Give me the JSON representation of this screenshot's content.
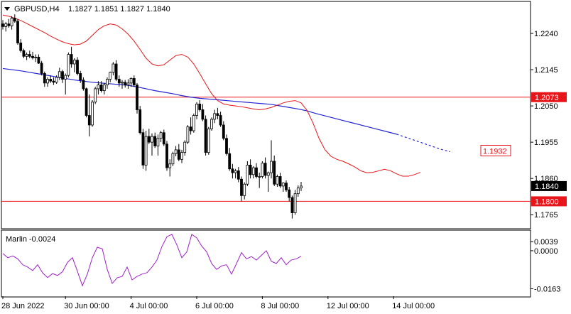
{
  "header": {
    "symbol": "GBPUSD,H4",
    "ohlc": "1.1827 1.1851 1.1827 1.1840"
  },
  "indicator": {
    "title": "Marlin -0.0024"
  },
  "colors": {
    "candle": "#000000",
    "red_band": "#e8161b",
    "ma_blue": "#2424d2",
    "marlin": "#a020c8",
    "hline": "#e8161b",
    "price_box": "#000000",
    "red_box": "#e8161b"
  },
  "chart_data": [
    {
      "type": "candlestick",
      "name": "GBPUSD,H4",
      "xlabels": [
        "28 Jun 2022",
        "30 Jun 00:00",
        "4 Jul 00:00",
        "6 Jul 00:00",
        "8 Jul 00:00",
        "12 Jul 00:00",
        "14 Jul 00:00"
      ],
      "xlabel_index": [
        0,
        21,
        43,
        65,
        87,
        109,
        131
      ],
      "yticks": [
        1.224,
        1.2145,
        1.205,
        1.1955,
        1.186,
        1.1765
      ],
      "ylim": [
        1.173,
        1.2322
      ],
      "horizontal_lines": [
        {
          "value": 1.2073,
          "label": "1.2073"
        },
        {
          "value": 1.18,
          "label": "1.1800"
        }
      ],
      "price_labels": [
        {
          "value": 1.184,
          "label": "1.1840",
          "style": "current"
        },
        {
          "value": 1.1932,
          "label": "1.1932",
          "style": "ma"
        }
      ],
      "ohlc": [
        [
          1.2265,
          1.2275,
          1.225,
          1.2258
        ],
        [
          1.2258,
          1.227,
          1.2245,
          1.2265
        ],
        [
          1.2265,
          1.2278,
          1.2255,
          1.226
        ],
        [
          1.226,
          1.2285,
          1.225,
          1.228
        ],
        [
          1.228,
          1.229,
          1.2268,
          1.2272
        ],
        [
          1.2272,
          1.2278,
          1.221,
          1.2215
        ],
        [
          1.2215,
          1.2225,
          1.219,
          1.2195
        ],
        [
          1.2195,
          1.22,
          1.2175,
          1.218
        ],
        [
          1.218,
          1.219,
          1.217,
          1.2185
        ],
        [
          1.2185,
          1.2195,
          1.2175,
          1.218
        ],
        [
          1.218,
          1.2192,
          1.2172,
          1.2176
        ],
        [
          1.2176,
          1.2185,
          1.2165,
          1.2178
        ],
        [
          1.2178,
          1.2185,
          1.216,
          1.2162
        ],
        [
          1.2162,
          1.2168,
          1.213,
          1.2135
        ],
        [
          1.2135,
          1.214,
          1.21,
          1.211
        ],
        [
          1.211,
          1.2125,
          1.21,
          1.212
        ],
        [
          1.212,
          1.213,
          1.211,
          1.2115
        ],
        [
          1.2115,
          1.2125,
          1.2105,
          1.2112
        ],
        [
          1.2112,
          1.213,
          1.2108,
          1.2125
        ],
        [
          1.2125,
          1.215,
          1.2118,
          1.214
        ],
        [
          1.214,
          1.2145,
          1.211,
          1.212
        ],
        [
          1.212,
          1.2135,
          1.208,
          1.213
        ],
        [
          1.213,
          1.219,
          1.2125,
          1.2185
        ],
        [
          1.2185,
          1.2205,
          1.215,
          1.216
        ],
        [
          1.216,
          1.2175,
          1.2138,
          1.217
        ],
        [
          1.217,
          1.2178,
          1.213,
          1.2135
        ],
        [
          1.2135,
          1.2142,
          1.211,
          1.2118
        ],
        [
          1.2118,
          1.2125,
          1.209,
          1.2095
        ],
        [
          1.2095,
          1.2098,
          1.202,
          1.2025
        ],
        [
          1.2025,
          1.208,
          1.197,
          1.2
        ],
        [
          1.2,
          1.2065,
          1.1995,
          1.206
        ],
        [
          1.206,
          1.21,
          1.2055,
          1.2095
        ],
        [
          1.2095,
          1.2115,
          1.208,
          1.2105
        ],
        [
          1.2105,
          1.2115,
          1.2085,
          1.209
        ],
        [
          1.209,
          1.211,
          1.208,
          1.2105
        ],
        [
          1.2105,
          1.2125,
          1.2095,
          1.212
        ],
        [
          1.212,
          1.214,
          1.2112,
          1.2138
        ],
        [
          1.2138,
          1.2165,
          1.213,
          1.216
        ],
        [
          1.216,
          1.217,
          1.2115,
          1.212
        ],
        [
          1.212,
          1.213,
          1.21,
          1.211
        ],
        [
          1.211,
          1.2118,
          1.2095,
          1.2112
        ],
        [
          1.2112,
          1.2118,
          1.2098,
          1.2105
        ],
        [
          1.2105,
          1.212,
          1.2095,
          1.211
        ],
        [
          1.211,
          1.2125,
          1.21,
          1.2122
        ],
        [
          1.2122,
          1.213,
          1.21,
          1.2105
        ],
        [
          1.2105,
          1.211,
          1.203,
          1.204
        ],
        [
          1.204,
          1.205,
          1.1975,
          1.198
        ],
        [
          1.198,
          1.199,
          1.1885,
          1.1895
        ],
        [
          1.1895,
          1.1985,
          1.188,
          1.197
        ],
        [
          1.197,
          1.199,
          1.195,
          1.1955
        ],
        [
          1.1955,
          1.1978,
          1.192,
          1.197
        ],
        [
          1.197,
          1.198,
          1.194,
          1.1945
        ],
        [
          1.1945,
          1.1975,
          1.192,
          1.1965
        ],
        [
          1.1965,
          1.1985,
          1.1955,
          1.198
        ],
        [
          1.198,
          1.1988,
          1.1945,
          1.195
        ],
        [
          1.195,
          1.1958,
          1.188,
          1.1888
        ],
        [
          1.1888,
          1.191,
          1.1865,
          1.1898
        ],
        [
          1.1898,
          1.193,
          1.1892,
          1.1925
        ],
        [
          1.1925,
          1.1945,
          1.1918,
          1.1935
        ],
        [
          1.1935,
          1.195,
          1.1905,
          1.191
        ],
        [
          1.191,
          1.1935,
          1.19,
          1.1928
        ],
        [
          1.1928,
          1.196,
          1.192,
          1.1955
        ],
        [
          1.1955,
          1.2,
          1.195,
          1.1995
        ],
        [
          1.1995,
          1.202,
          1.1975,
          1.1985
        ],
        [
          1.1985,
          1.203,
          1.198,
          1.2025
        ],
        [
          1.2025,
          1.206,
          1.2015,
          1.2055
        ],
        [
          1.2055,
          1.2065,
          1.2035,
          1.204
        ],
        [
          1.204,
          1.2055,
          1.201,
          1.2015
        ],
        [
          1.2015,
          1.2025,
          1.192,
          1.1928
        ],
        [
          1.1928,
          1.1995,
          1.1922,
          1.199
        ],
        [
          1.199,
          1.202,
          1.1985,
          1.2015
        ],
        [
          1.2015,
          1.204,
          1.2005,
          1.203
        ],
        [
          1.203,
          1.2045,
          1.2015,
          1.2025
        ],
        [
          1.2025,
          1.2035,
          1.1995,
          1.2
        ],
        [
          1.2,
          1.201,
          1.196,
          1.1965
        ],
        [
          1.1965,
          1.1975,
          1.192,
          1.1925
        ],
        [
          1.1925,
          1.194,
          1.188,
          1.1885
        ],
        [
          1.1885,
          1.1898,
          1.186,
          1.1875
        ],
        [
          1.1875,
          1.1885,
          1.186,
          1.188
        ],
        [
          1.188,
          1.189,
          1.185,
          1.1858
        ],
        [
          1.1858,
          1.1865,
          1.18,
          1.1815
        ],
        [
          1.1815,
          1.185,
          1.1805,
          1.1845
        ],
        [
          1.1845,
          1.1905,
          1.184,
          1.1895
        ],
        [
          1.1895,
          1.191,
          1.186,
          1.187
        ],
        [
          1.187,
          1.1892,
          1.186,
          1.1888
        ],
        [
          1.1888,
          1.19,
          1.186,
          1.1865
        ],
        [
          1.1865,
          1.1875,
          1.1835,
          1.1865
        ],
        [
          1.1865,
          1.1905,
          1.186,
          1.19
        ],
        [
          1.19,
          1.1915,
          1.186,
          1.1868
        ],
        [
          1.1868,
          1.1878,
          1.1825,
          1.1875
        ],
        [
          1.1875,
          1.196,
          1.186,
          1.1905
        ],
        [
          1.1905,
          1.192,
          1.184,
          1.1845
        ],
        [
          1.1845,
          1.187,
          1.1838,
          1.1865
        ],
        [
          1.1865,
          1.1875,
          1.1835,
          1.184
        ],
        [
          1.184,
          1.185,
          1.1825,
          1.1848
        ],
        [
          1.1848,
          1.1855,
          1.1825,
          1.183
        ],
        [
          1.183,
          1.1838,
          1.18,
          1.181
        ],
        [
          1.181,
          1.1815,
          1.1755,
          1.177
        ],
        [
          1.177,
          1.183,
          1.1765,
          1.182
        ],
        [
          1.182,
          1.1842,
          1.1812,
          1.1835
        ],
        [
          1.1835,
          1.1851,
          1.1827,
          1.184
        ]
      ],
      "red_band": [
        1.2288,
        1.2285,
        1.228,
        1.2274,
        1.2266,
        1.2258,
        1.225,
        1.2242,
        1.2233,
        1.2225,
        1.2218,
        1.2213,
        1.221,
        1.2212,
        1.222,
        1.2235,
        1.225,
        1.226,
        1.2265,
        1.2262,
        1.2252,
        1.2238,
        1.222,
        1.2198,
        1.2175,
        1.216,
        1.2155,
        1.2158,
        1.217,
        1.2182,
        1.2185,
        1.2178,
        1.216,
        1.2135,
        1.2108,
        1.2082,
        1.2064,
        1.2055,
        1.2052,
        1.205,
        1.2048,
        1.2045,
        1.2042,
        1.204,
        1.2042,
        1.2046,
        1.2052,
        1.2058,
        1.2062,
        1.2064,
        1.2058,
        1.2038,
        1.2005,
        1.1965,
        1.1935,
        1.1918,
        1.191,
        1.1905,
        1.1898,
        1.189,
        1.188,
        1.1875,
        1.1876,
        1.188,
        1.1884,
        1.188,
        1.1872,
        1.1866,
        1.1866,
        1.187,
        1.1876
      ],
      "ma_blue": [
        1.2148,
        1.2145,
        1.2142,
        1.2138,
        1.2134,
        1.213,
        1.2126,
        1.2122,
        1.2118,
        1.2115,
        1.2112,
        1.211,
        1.2108,
        1.2106,
        1.2104,
        1.21,
        1.2095,
        1.209,
        1.2086,
        1.2082,
        1.2077,
        1.2073,
        1.207,
        1.2068,
        1.2066,
        1.2064,
        1.2062,
        1.206,
        1.2058,
        1.2056,
        1.2054,
        1.205,
        1.2046,
        1.2042,
        1.2037,
        1.203,
        1.2024,
        1.2018,
        1.2012,
        1.2006,
        1.2,
        1.1994,
        1.1988,
        1.1982,
        1.1976,
        1.1968,
        1.196,
        1.1952,
        1.1944,
        1.1936,
        1.193
      ],
      "ma_blue_projected": true
    },
    {
      "type": "line",
      "name": "Marlin",
      "title": "Marlin -0.0024",
      "yticks": [
        0.0039,
        0.0,
        -0.0163
      ],
      "ylim": [
        -0.0195,
        0.0085
      ],
      "values": [
        -0.0012,
        -0.003,
        -0.0022,
        -0.0035,
        -0.006,
        -0.007,
        -0.0085,
        -0.006,
        -0.0095,
        -0.0115,
        -0.0098,
        -0.0106,
        -0.009,
        -0.005,
        -0.003,
        -0.0088,
        -0.015,
        -0.01,
        -0.003,
        0.0015,
        0.0008,
        -0.008,
        -0.014,
        -0.0116,
        -0.011,
        -0.007,
        -0.0125,
        -0.011,
        -0.01,
        -0.0094,
        -0.007,
        -0.004,
        0.0018,
        0.006,
        0.007,
        0.0025,
        -0.003,
        -0.0005,
        0.007,
        0.0055,
        0.002,
        -0.0005,
        -0.0055,
        -0.008,
        -0.0065,
        -0.006,
        -0.01,
        -0.0055,
        -0.0008,
        -0.0035,
        -0.0025,
        -0.004,
        -0.002,
        0.0,
        -0.0045,
        -0.0055,
        -0.003,
        -0.006,
        -0.004,
        -0.0035,
        -0.0024
      ]
    }
  ]
}
